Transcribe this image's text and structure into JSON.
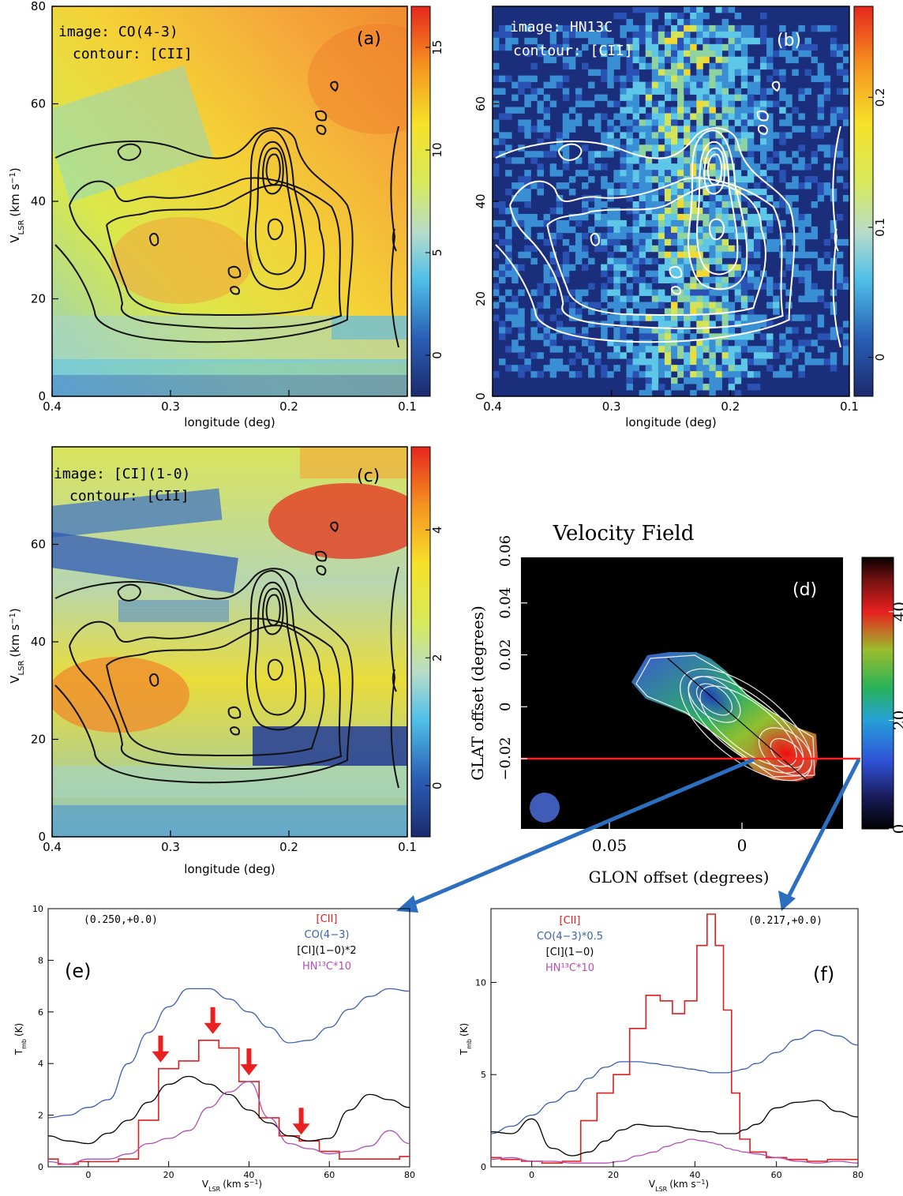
{
  "colors": {
    "co43": "#3b5fb0",
    "cii": "#e01e1e",
    "ci10": "#000000",
    "hn13c": "#b24fb4",
    "arrow": "#2c6fc0",
    "cut_line": "#ff2020"
  },
  "chart_data": [
    {
      "panel": "a",
      "type": "heatmap",
      "label": "(a)",
      "legend_line1": "image: CO(4-3)",
      "legend_line2": "contour: [CII]",
      "xlabel": "longitude (deg)",
      "ylabel": "V",
      "ylabel_sub": "LSR",
      "ylabel_unit": "(km s",
      "ylabel_sup": "−1",
      "ylabel_end": ")",
      "xlim": [
        0.4,
        0.1
      ],
      "ylim": [
        0,
        80
      ],
      "xticks": [
        "0.4",
        "0.3",
        "0.2",
        "0.1"
      ],
      "yticks": [
        "0",
        "20",
        "40",
        "60",
        "80"
      ],
      "colorbar_ticks": [
        "0",
        "5",
        "10",
        "15"
      ],
      "colorbar_range": [
        -2,
        17
      ]
    },
    {
      "panel": "b",
      "type": "heatmap",
      "label": "(b)",
      "legend_line1": "image: HN13C",
      "legend_line2": "contour: [CII]",
      "xlabel": "longitude (deg)",
      "xlim": [
        0.4,
        0.1
      ],
      "ylim": [
        0,
        80
      ],
      "xticks": [
        "0.4",
        "0.3",
        "0.2",
        "0.1"
      ],
      "yticks": [
        "0",
        "20",
        "40",
        "60"
      ],
      "colorbar_ticks": [
        "0",
        "0.1",
        "0.2"
      ],
      "colorbar_range": [
        -0.03,
        0.27
      ]
    },
    {
      "panel": "c",
      "type": "heatmap",
      "label": "(c)",
      "legend_line1": "image: [CI](1-0)",
      "legend_line2": "contour: [CII]",
      "xlabel": "longitude (deg)",
      "ylabel": "V",
      "ylabel_sub": "LSR",
      "ylabel_unit": "(km s",
      "ylabel_sup": "−1",
      "ylabel_end": ")",
      "xlim": [
        0.4,
        0.1
      ],
      "ylim": [
        0,
        80
      ],
      "xticks": [
        "0.4",
        "0.3",
        "0.2",
        "0.1"
      ],
      "yticks": [
        "0",
        "20",
        "40",
        "60"
      ],
      "colorbar_ticks": [
        "0",
        "2",
        "4"
      ],
      "colorbar_range": [
        -0.8,
        5.3
      ]
    },
    {
      "panel": "d",
      "type": "heatmap",
      "title": "Velocity Field",
      "label": "(d)",
      "xlabel": "GLON offset (degrees)",
      "ylabel": "GLAT offset (degrees)",
      "xticks": [
        "0.05",
        "0"
      ],
      "yticks": [
        "−0.02",
        "0",
        "0.02",
        "0.04",
        "0.06"
      ],
      "colorbar_ticks": [
        "0",
        "20",
        "40"
      ],
      "colorbar_range": [
        0,
        50
      ]
    },
    {
      "panel": "e",
      "type": "line",
      "label": "(e)",
      "position_label": "(0.250,+0.0)",
      "xlabel": "V",
      "xlabel_sub": "LSR",
      "xlabel_unit": "(km s",
      "xlabel_sup": "−1",
      "xlabel_end": ")",
      "ylabel": "T",
      "ylabel_sub": "mb",
      "ylabel_unit": "(K)",
      "xlim": [
        -10,
        80
      ],
      "ylim": [
        0,
        10
      ],
      "xticks": [
        0,
        20,
        40,
        60,
        80
      ],
      "yticks": [
        0,
        2,
        4,
        6,
        8,
        10
      ],
      "legend": [
        {
          "text": "[CII]",
          "color": "#e01e1e"
        },
        {
          "text": "CO(4−3)",
          "color": "#3b5fb0"
        },
        {
          "text": "[CI](1−0)*2",
          "color": "#000000"
        },
        {
          "text": "HN¹³C*10",
          "color": "#b24fb4"
        }
      ],
      "x": [
        -10,
        -5,
        0,
        5,
        10,
        15,
        20,
        25,
        30,
        35,
        40,
        45,
        50,
        55,
        60,
        65,
        70,
        75,
        80
      ],
      "series": [
        {
          "name": "[CII]",
          "color": "#e01e1e",
          "step": true,
          "values": [
            0.3,
            0.1,
            0.2,
            0.2,
            0.3,
            1.8,
            3.8,
            4.1,
            4.9,
            4.6,
            3.3,
            1.9,
            1.2,
            1.0,
            0.6,
            0.3,
            0.3,
            0.3,
            0.4
          ]
        },
        {
          "name": "CO(4−3)",
          "color": "#3b5fb0",
          "values": [
            1.9,
            2.0,
            2.3,
            2.6,
            4.0,
            5.2,
            6.2,
            6.9,
            6.9,
            6.5,
            6.0,
            5.4,
            4.8,
            4.9,
            5.4,
            6.1,
            6.6,
            6.9,
            6.8
          ]
        },
        {
          "name": "[CI](1−0)*2",
          "color": "#000000",
          "values": [
            1.2,
            1.0,
            0.9,
            1.3,
            1.8,
            2.5,
            3.2,
            3.5,
            3.2,
            2.8,
            2.2,
            1.7,
            1.2,
            1.0,
            1.1,
            2.2,
            2.8,
            2.6,
            2.3
          ]
        },
        {
          "name": "HN¹³C*10",
          "color": "#b24fb4",
          "values": [
            0.2,
            0.1,
            0.3,
            0.3,
            0.5,
            0.9,
            1.1,
            1.4,
            2.3,
            2.9,
            3.3,
            1.9,
            0.9,
            0.7,
            0.5,
            0.6,
            0.8,
            1.4,
            0.9
          ]
        }
      ],
      "arrow_markers_x": [
        18,
        31,
        40,
        53
      ]
    },
    {
      "panel": "f",
      "type": "line",
      "label": "(f)",
      "position_label": "(0.217,+0.0)",
      "xlabel": "V",
      "xlabel_sub": "LSR",
      "xlabel_unit": "(km s",
      "xlabel_sup": "−1",
      "xlabel_end": ")",
      "ylabel": "T",
      "ylabel_sub": "mb",
      "ylabel_unit": "(K)",
      "xlim": [
        -10,
        80
      ],
      "ylim": [
        0,
        14
      ],
      "xticks": [
        0,
        20,
        40,
        60,
        80
      ],
      "yticks": [
        0,
        5,
        10
      ],
      "legend": [
        {
          "text": "[CII]",
          "color": "#e01e1e"
        },
        {
          "text": "CO(4−3)*0.5",
          "color": "#3b5fb0"
        },
        {
          "text": "[CI](1−0)",
          "color": "#000000"
        },
        {
          "text": "HN¹³C*10",
          "color": "#b24fb4"
        }
      ],
      "x": [
        -10,
        -5,
        0,
        5,
        10,
        14,
        18,
        22,
        26,
        30,
        33,
        36,
        39,
        42,
        44,
        46,
        48,
        50,
        52,
        55,
        60,
        65,
        70,
        75,
        80
      ],
      "series": [
        {
          "name": "[CII]",
          "color": "#e01e1e",
          "step": true,
          "values": [
            0.5,
            0.4,
            0.3,
            0.2,
            0.3,
            2.5,
            4.0,
            5.0,
            7.5,
            9.3,
            9.0,
            8.3,
            9.0,
            12.0,
            13.7,
            12.0,
            8.5,
            4.0,
            1.5,
            0.8,
            0.5,
            0.4,
            0.3,
            0.4,
            0.4
          ]
        },
        {
          "name": "CO(4−3)*0.5",
          "color": "#3b5fb0",
          "values": [
            1.8,
            2.2,
            2.8,
            3.5,
            4.1,
            4.8,
            5.4,
            5.7,
            5.7,
            5.6,
            5.5,
            5.4,
            5.3,
            5.2,
            5.1,
            5.1,
            5.1,
            5.2,
            5.3,
            5.6,
            6.2,
            6.9,
            7.4,
            7.1,
            6.6
          ]
        },
        {
          "name": "[CI](1−0)",
          "color": "#000000",
          "values": [
            1.9,
            1.8,
            2.6,
            1.0,
            0.6,
            0.8,
            1.4,
            2.0,
            2.3,
            2.2,
            2.2,
            2.1,
            2.0,
            1.9,
            1.9,
            1.8,
            1.8,
            1.8,
            2.0,
            2.3,
            3.2,
            3.5,
            3.6,
            3.0,
            2.7
          ]
        },
        {
          "name": "HN¹³C*10",
          "color": "#b24fb4",
          "values": [
            0.4,
            0.5,
            0.3,
            0.3,
            0.2,
            0.2,
            0.2,
            0.3,
            0.6,
            0.8,
            1.1,
            1.3,
            1.5,
            1.4,
            1.3,
            1.2,
            1.0,
            0.9,
            0.8,
            0.7,
            0.5,
            0.3,
            0.2,
            0.3,
            0.2
          ]
        }
      ]
    }
  ]
}
